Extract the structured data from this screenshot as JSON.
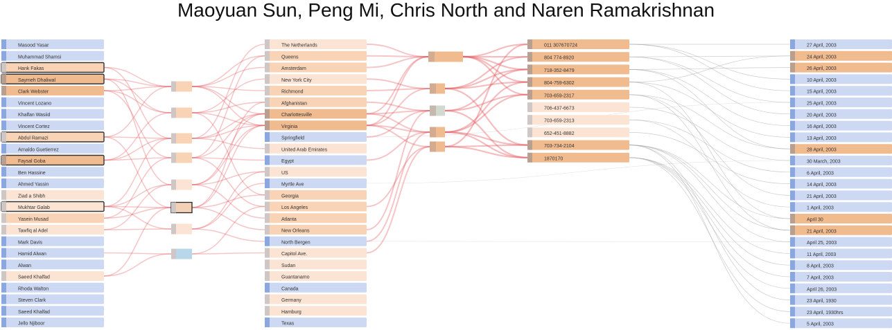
{
  "authors": "Maoyuan Sun, Peng Mi, Chris North and Naren Ramakrishnan",
  "colors": {
    "blue": "#cdd9f3",
    "blue_bar": "#8aa7e0",
    "peach_light": "#fbe4d4",
    "peach": "#f8d3b6",
    "orange": "#f1bb90",
    "bar_light": "#cfc7c5",
    "bar_dark": "#b99f8f",
    "link_red": "#e35a5f",
    "link_grey": "#a2a2a2",
    "node_gray": "#d3d8d0",
    "node_blue": "#b9d7ea"
  },
  "columns": {
    "people": {
      "items": [
        {
          "label": "Masood Yasar",
          "shade": "blue"
        },
        {
          "label": "Muhammad Shamsi",
          "shade": "blue"
        },
        {
          "label": "Hank Fakas",
          "shade": "peach",
          "outlined": true
        },
        {
          "label": "Saymeh Dhaliwal",
          "shade": "orange",
          "outlined": true
        },
        {
          "label": "Clark Webster",
          "shade": "orange"
        },
        {
          "label": "Vincent Lozano",
          "shade": "blue"
        },
        {
          "label": "Khalfan Wasiid",
          "shade": "blue"
        },
        {
          "label": "Vincent Cortez",
          "shade": "blue"
        },
        {
          "label": "Abdul Ramazi",
          "shade": "peach",
          "outlined": true
        },
        {
          "label": "Arnaldo Guetierrez",
          "shade": "blue"
        },
        {
          "label": "Faysal Goba",
          "shade": "orange",
          "outlined": true
        },
        {
          "label": "Ben Hassine",
          "shade": "blue"
        },
        {
          "label": "Ahmed Yassin",
          "shade": "blue"
        },
        {
          "label": "Ziad a Shibh",
          "shade": "peach_light"
        },
        {
          "label": "Mukhtar Galab",
          "shade": "peach_light",
          "outlined": true
        },
        {
          "label": "Yasein Musad",
          "shade": "peach"
        },
        {
          "label": "Tawfiq al Adel",
          "shade": "peach_light"
        },
        {
          "label": "Mark Davis",
          "shade": "blue"
        },
        {
          "label": "Hamid Alwan",
          "shade": "blue"
        },
        {
          "label": "Alwan",
          "shade": "blue"
        },
        {
          "label": "Saeed Khalfad",
          "shade": "peach_light"
        },
        {
          "label": "Rhoda Walton",
          "shade": "blue"
        },
        {
          "label": "Steven Clark",
          "shade": "blue"
        },
        {
          "label": "Saeed Khalfad",
          "shade": "blue"
        },
        {
          "label": "Jello Njiboor",
          "shade": "blue"
        }
      ]
    },
    "places": {
      "items": [
        {
          "label": "The Netherlands",
          "shade": "peach_light"
        },
        {
          "label": "Queens",
          "shade": "peach"
        },
        {
          "label": "Amsterdam",
          "shade": "peach"
        },
        {
          "label": "New York City",
          "shade": "peach_light"
        },
        {
          "label": "Richmond",
          "shade": "peach"
        },
        {
          "label": "Afghanistan",
          "shade": "peach"
        },
        {
          "label": "Charlottesville",
          "shade": "orange"
        },
        {
          "label": "Virginia",
          "shade": "orange"
        },
        {
          "label": "Springfield",
          "shade": "blue"
        },
        {
          "label": "United Arab Emirates",
          "shade": "peach_light"
        },
        {
          "label": "Egypt",
          "shade": "blue"
        },
        {
          "label": "US",
          "shade": "peach_light"
        },
        {
          "label": "Myrtle Ave",
          "shade": "blue"
        },
        {
          "label": "Georgia",
          "shade": "peach"
        },
        {
          "label": "Los Angeles",
          "shade": "peach"
        },
        {
          "label": "Atlanta",
          "shade": "peach"
        },
        {
          "label": "New Orleans",
          "shade": "peach"
        },
        {
          "label": "North Bergen",
          "shade": "blue"
        },
        {
          "label": "Capitol Ave.",
          "shade": "peach_light"
        },
        {
          "label": "Sudan",
          "shade": "peach_light"
        },
        {
          "label": "Guantanamo",
          "shade": "peach_light"
        },
        {
          "label": "Canada",
          "shade": "blue"
        },
        {
          "label": "Germany",
          "shade": "peach_light"
        },
        {
          "label": "Hamburg",
          "shade": "peach_light"
        },
        {
          "label": "Texas",
          "shade": "blue"
        }
      ]
    },
    "phones": {
      "items": [
        {
          "label": "011 307670724",
          "shade": "orange"
        },
        {
          "label": "804 774-8920",
          "shade": "orange"
        },
        {
          "label": "718-352-8479",
          "shade": "orange"
        },
        {
          "label": "804-759-6302",
          "shade": "orange"
        },
        {
          "label": "703-659-2317",
          "shade": "orange"
        },
        {
          "label": "706-437-6673",
          "shade": "peach_light"
        },
        {
          "label": "703-659-2313",
          "shade": "peach_light"
        },
        {
          "label": "652-451-8882",
          "shade": "peach_light"
        },
        {
          "label": "703-734-2104",
          "shade": "orange"
        },
        {
          "label": "1870170",
          "shade": "orange"
        }
      ]
    },
    "dates": {
      "items": [
        {
          "label": "27 April, 2003",
          "shade": "blue"
        },
        {
          "label": "24 April, 2003",
          "shade": "orange"
        },
        {
          "label": "26 April, 2003",
          "shade": "orange"
        },
        {
          "label": "10 April, 2003",
          "shade": "blue"
        },
        {
          "label": "15 April, 2003",
          "shade": "blue"
        },
        {
          "label": "25 April, 2003",
          "shade": "blue"
        },
        {
          "label": "20 April, 2003",
          "shade": "blue"
        },
        {
          "label": "16 April, 2003",
          "shade": "blue"
        },
        {
          "label": "13 April, 2003",
          "shade": "blue"
        },
        {
          "label": "28 April, 2003",
          "shade": "orange"
        },
        {
          "label": "30 March, 2003",
          "shade": "blue"
        },
        {
          "label": "6 April, 2003",
          "shade": "blue"
        },
        {
          "label": "14 April, 2003",
          "shade": "blue"
        },
        {
          "label": "21 April, 2003",
          "shade": "blue"
        },
        {
          "label": "1 April, 2003",
          "shade": "blue"
        },
        {
          "label": "April 30",
          "shade": "orange"
        },
        {
          "label": "21 April, 2003",
          "shade": "orange"
        },
        {
          "label": "April 25, 2003",
          "shade": "blue"
        },
        {
          "label": "11 April, 2003",
          "shade": "blue"
        },
        {
          "label": "8 April, 2003",
          "shade": "blue"
        },
        {
          "label": "7 April, 2003",
          "shade": "blue"
        },
        {
          "label": "April 26, 2003",
          "shade": "blue"
        },
        {
          "label": "23 April, 1930",
          "shade": "blue"
        },
        {
          "label": "23 April, 1930hrs",
          "shade": "blue"
        },
        {
          "label": "5 April, 2003",
          "shade": "blue"
        }
      ]
    }
  },
  "bicluster_groups": {
    "people_places": [
      {
        "shade": "peach",
        "people": [
          2,
          3,
          4,
          8
        ],
        "places": [
          1,
          2,
          4,
          6,
          7
        ]
      },
      {
        "shade": "peach",
        "people": [
          3,
          4,
          10
        ],
        "places": [
          3,
          5,
          7,
          13
        ]
      },
      {
        "shade": "peach",
        "people": [
          2,
          8,
          10,
          14
        ],
        "places": [
          0,
          6,
          7,
          9
        ]
      },
      {
        "shade": "peach",
        "people": [
          4,
          10,
          15
        ],
        "places": [
          1,
          6,
          10,
          14
        ]
      },
      {
        "shade": "peach_light",
        "people": [
          3,
          14,
          16
        ],
        "places": [
          6,
          7,
          11,
          15
        ]
      },
      {
        "shade": "outlined",
        "people": [
          8,
          14,
          15,
          20
        ],
        "places": [
          5,
          7,
          13,
          16
        ]
      },
      {
        "shade": "peach_light",
        "people": [
          14,
          16
        ],
        "places": [
          11,
          12,
          17
        ]
      },
      {
        "shade": "node_blue",
        "people": [
          18,
          20
        ],
        "places": [
          14,
          18
        ]
      }
    ],
    "places_phones": [
      {
        "shade": "orange",
        "places": [
          0,
          1,
          2,
          6,
          7
        ],
        "phones": [
          0,
          1,
          2,
          3,
          4
        ]
      },
      {
        "shade": "orange",
        "places": [
          3,
          4,
          7
        ],
        "phones": [
          1,
          2,
          3,
          8
        ]
      },
      {
        "shade": "node_gray",
        "places": [
          5,
          6,
          8,
          16
        ],
        "phones": [
          2,
          4,
          9
        ]
      },
      {
        "shade": "orange",
        "places": [
          6,
          7,
          10,
          17
        ],
        "phones": [
          3,
          4,
          8,
          9
        ]
      },
      {
        "shade": "orange",
        "places": [
          7,
          14,
          18
        ],
        "phones": [
          0,
          8,
          9
        ]
      }
    ]
  }
}
